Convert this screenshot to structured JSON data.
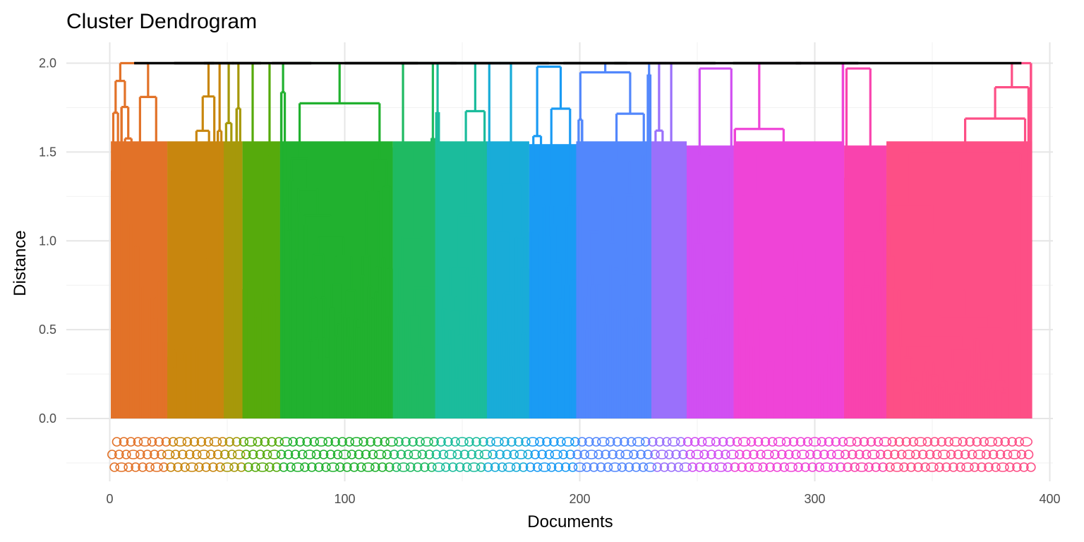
{
  "chart_data": {
    "type": "dendrogram",
    "title": "Cluster Dendrogram",
    "xlabel": "Documents",
    "ylabel": "Distance",
    "xlim": [
      0,
      400
    ],
    "ylim": [
      -0.29,
      2.02
    ],
    "x_ticks": [
      "0",
      "100",
      "200",
      "300",
      "400"
    ],
    "y_ticks": [
      "0.0",
      "0.5",
      "1.0",
      "1.5",
      "2.0"
    ],
    "n_leaves": 392,
    "grid": true,
    "root_height": 2.0,
    "root_color": "#000000",
    "leaf_labels_legible": false,
    "clusters": [
      {
        "start": 1,
        "end": 24,
        "color": "#E27228",
        "top_height": 2.0
      },
      {
        "start": 25,
        "end": 48,
        "color": "#C8860E",
        "top_height": 2.0
      },
      {
        "start": 49,
        "end": 56,
        "color": "#A6980A",
        "top_height": 2.0
      },
      {
        "start": 57,
        "end": 72,
        "color": "#56AA0C",
        "top_height": 2.0
      },
      {
        "start": 73,
        "end": 120,
        "color": "#21B12F",
        "top_height": 2.0
      },
      {
        "start": 121,
        "end": 138,
        "color": "#1FBA62",
        "top_height": 2.0
      },
      {
        "start": 139,
        "end": 160,
        "color": "#1BBC9C",
        "top_height": 2.0
      },
      {
        "start": 161,
        "end": 178,
        "color": "#19ACD8",
        "top_height": 2.0
      },
      {
        "start": 179,
        "end": 198,
        "color": "#1A9BF4",
        "top_height": 1.98
      },
      {
        "start": 199,
        "end": 230,
        "color": "#5287FC",
        "top_height": 2.0
      },
      {
        "start": 231,
        "end": 245,
        "color": "#9A70FB",
        "top_height": 2.0
      },
      {
        "start": 246,
        "end": 265,
        "color": "#D14FF2",
        "top_height": 1.97
      },
      {
        "start": 266,
        "end": 312,
        "color": "#EF44D7",
        "top_height": 2.0
      },
      {
        "start": 313,
        "end": 330,
        "color": "#F943AE",
        "top_height": 1.97
      },
      {
        "start": 331,
        "end": 392,
        "color": "#FD4F86",
        "top_height": 2.0
      }
    ],
    "colors": {
      "grid_major": "#e6e6e6",
      "grid_minor": "#f2f2f2",
      "tick_text": "#4d4d4d",
      "background": "#ffffff"
    }
  }
}
